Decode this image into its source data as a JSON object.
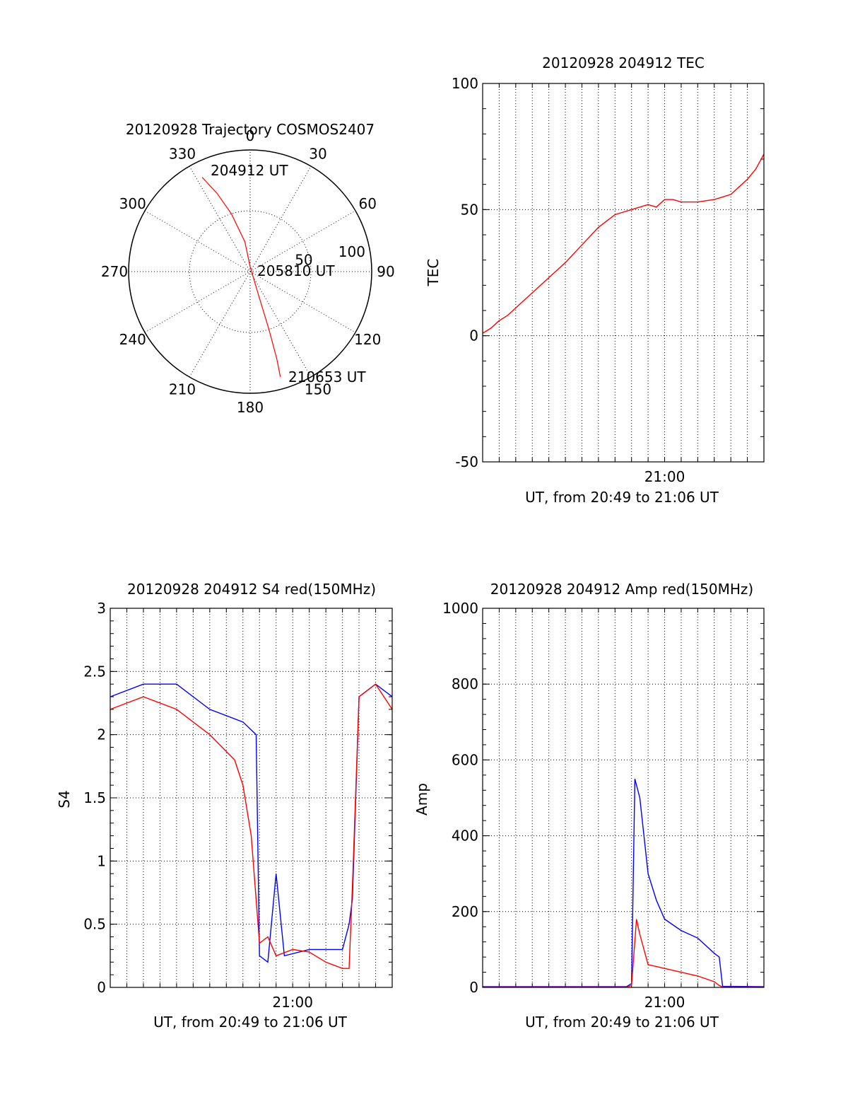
{
  "colors": {
    "red": "#ff0000",
    "blue": "#0000ff",
    "axis": "#000000"
  },
  "chart_data": [
    {
      "type": "polar",
      "title": "20120928 Trajectory COSMOS2407",
      "azimuth_labels": [
        "0",
        "30",
        "60",
        "90",
        "120",
        "150",
        "180",
        "210",
        "240",
        "270",
        "300",
        "330"
      ],
      "radial_labels": [
        "50",
        "100"
      ],
      "rlim": [
        0,
        100
      ],
      "annotations": [
        "204912 UT",
        "205810 UT",
        "210653 UT"
      ],
      "series": [
        {
          "color": "red",
          "points": [
            {
              "az": 333,
              "r": 87
            },
            {
              "az": 337,
              "r": 70
            },
            {
              "az": 342,
              "r": 50
            },
            {
              "az": 350,
              "r": 25
            },
            {
              "az": 0,
              "r": 4
            },
            {
              "az": 160,
              "r": 18
            },
            {
              "az": 162,
              "r": 50
            },
            {
              "az": 163,
              "r": 75
            },
            {
              "az": 164,
              "r": 90
            }
          ]
        }
      ]
    },
    {
      "type": "line",
      "title": "20120928 204912 TEC",
      "xlabel": "UT, from 20:49 to 21:06 UT",
      "ylabel": "TEC",
      "xlim": [
        0,
        17
      ],
      "ylim": [
        -50,
        100
      ],
      "yticks": [
        "-50",
        "0",
        "50",
        "100"
      ],
      "xtick_labels": [
        {
          "x": 11,
          "label": "21:00"
        }
      ],
      "grid": true,
      "series": [
        {
          "color": "red",
          "x": [
            0,
            0.5,
            1,
            1.5,
            2,
            3,
            4,
            5,
            6,
            7,
            8,
            9,
            10,
            10.5,
            11,
            11.5,
            12,
            13,
            14,
            15,
            15.5,
            16,
            16.5,
            17
          ],
          "y": [
            1,
            3,
            6,
            8,
            11,
            17,
            23,
            29,
            36,
            43,
            48,
            50,
            52,
            51,
            54,
            54,
            53,
            53,
            54,
            56,
            59,
            62,
            66,
            72
          ]
        }
      ]
    },
    {
      "type": "line",
      "title": "20120928 204912 S4 red(150MHz)",
      "xlabel": "UT, from 20:49 to 21:06 UT",
      "ylabel": "S4",
      "xlim": [
        0,
        17
      ],
      "ylim": [
        0,
        3
      ],
      "yticks": [
        "0",
        "0.5",
        "1",
        "1.5",
        "2",
        "2.5",
        "3"
      ],
      "xtick_labels": [
        {
          "x": 11,
          "label": "21:00"
        }
      ],
      "grid": true,
      "series": [
        {
          "color": "blue",
          "x": [
            0,
            2,
            4,
            6,
            8,
            8.8,
            9,
            9.5,
            10,
            10.5,
            12,
            14,
            14.4,
            14.6,
            15,
            16,
            17
          ],
          "y": [
            2.3,
            2.4,
            2.4,
            2.2,
            2.1,
            2.0,
            0.25,
            0.2,
            0.9,
            0.25,
            0.3,
            0.3,
            0.5,
            0.7,
            2.3,
            2.4,
            2.3
          ]
        },
        {
          "color": "red",
          "x": [
            0,
            2,
            4,
            6,
            7.5,
            8,
            8.5,
            9,
            9.5,
            10,
            11,
            12,
            13,
            14,
            14.4,
            14.6,
            15,
            16,
            17
          ],
          "y": [
            2.2,
            2.3,
            2.2,
            2.0,
            1.8,
            1.6,
            1.2,
            0.35,
            0.4,
            0.25,
            0.3,
            0.28,
            0.2,
            0.15,
            0.15,
            0.8,
            2.3,
            2.4,
            2.2
          ]
        }
      ]
    },
    {
      "type": "line",
      "title": "20120928 204912 Amp red(150MHz)",
      "xlabel": "UT, from 20:49 to 21:06 UT",
      "ylabel": "Amp",
      "xlim": [
        0,
        17
      ],
      "ylim": [
        0,
        1000
      ],
      "yticks": [
        "0",
        "200",
        "400",
        "600",
        "800",
        "1000"
      ],
      "xtick_labels": [
        {
          "x": 11,
          "label": "21:00"
        }
      ],
      "grid": true,
      "series": [
        {
          "color": "blue",
          "x": [
            0,
            8.7,
            9,
            9.2,
            9.5,
            10,
            10.5,
            11,
            12,
            13,
            14,
            14.3,
            14.5,
            17
          ],
          "y": [
            2,
            2,
            10,
            550,
            500,
            300,
            230,
            180,
            150,
            130,
            90,
            80,
            3,
            2
          ]
        },
        {
          "color": "red",
          "x": [
            0,
            8.7,
            9,
            9.3,
            9.5,
            10,
            11,
            12,
            13,
            14,
            14.3,
            14.5,
            17
          ],
          "y": [
            1,
            1,
            5,
            180,
            140,
            60,
            50,
            40,
            30,
            15,
            5,
            1,
            1
          ]
        }
      ]
    }
  ]
}
